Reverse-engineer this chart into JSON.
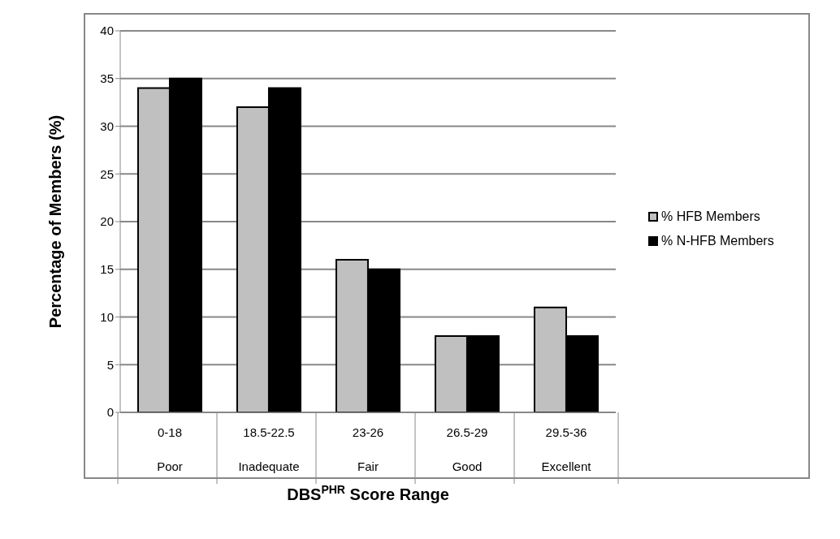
{
  "chart_data": {
    "type": "bar",
    "xlabel": "DBS$^{PHR}$ Score Range",
    "ylabel": "Percentage of Members (%)",
    "categories": [
      "0-18\nPoor",
      "18.5-22.5\nInadequate",
      "23-26\nFair",
      "26.5-29\nGood",
      "29.5-36\nExcellent"
    ],
    "series": [
      {
        "name": "% HFB Members",
        "color": "#c0c0c0",
        "values": [
          34,
          32,
          16,
          8,
          11
        ]
      },
      {
        "name": "% N-HFB Members",
        "color": "#000000",
        "values": [
          35,
          34,
          15,
          8,
          8
        ]
      }
    ],
    "ylim": [
      0,
      40
    ],
    "yticks": [
      0,
      5,
      10,
      15,
      20,
      25,
      30,
      35,
      40
    ],
    "grid": "y",
    "legend": "right"
  }
}
